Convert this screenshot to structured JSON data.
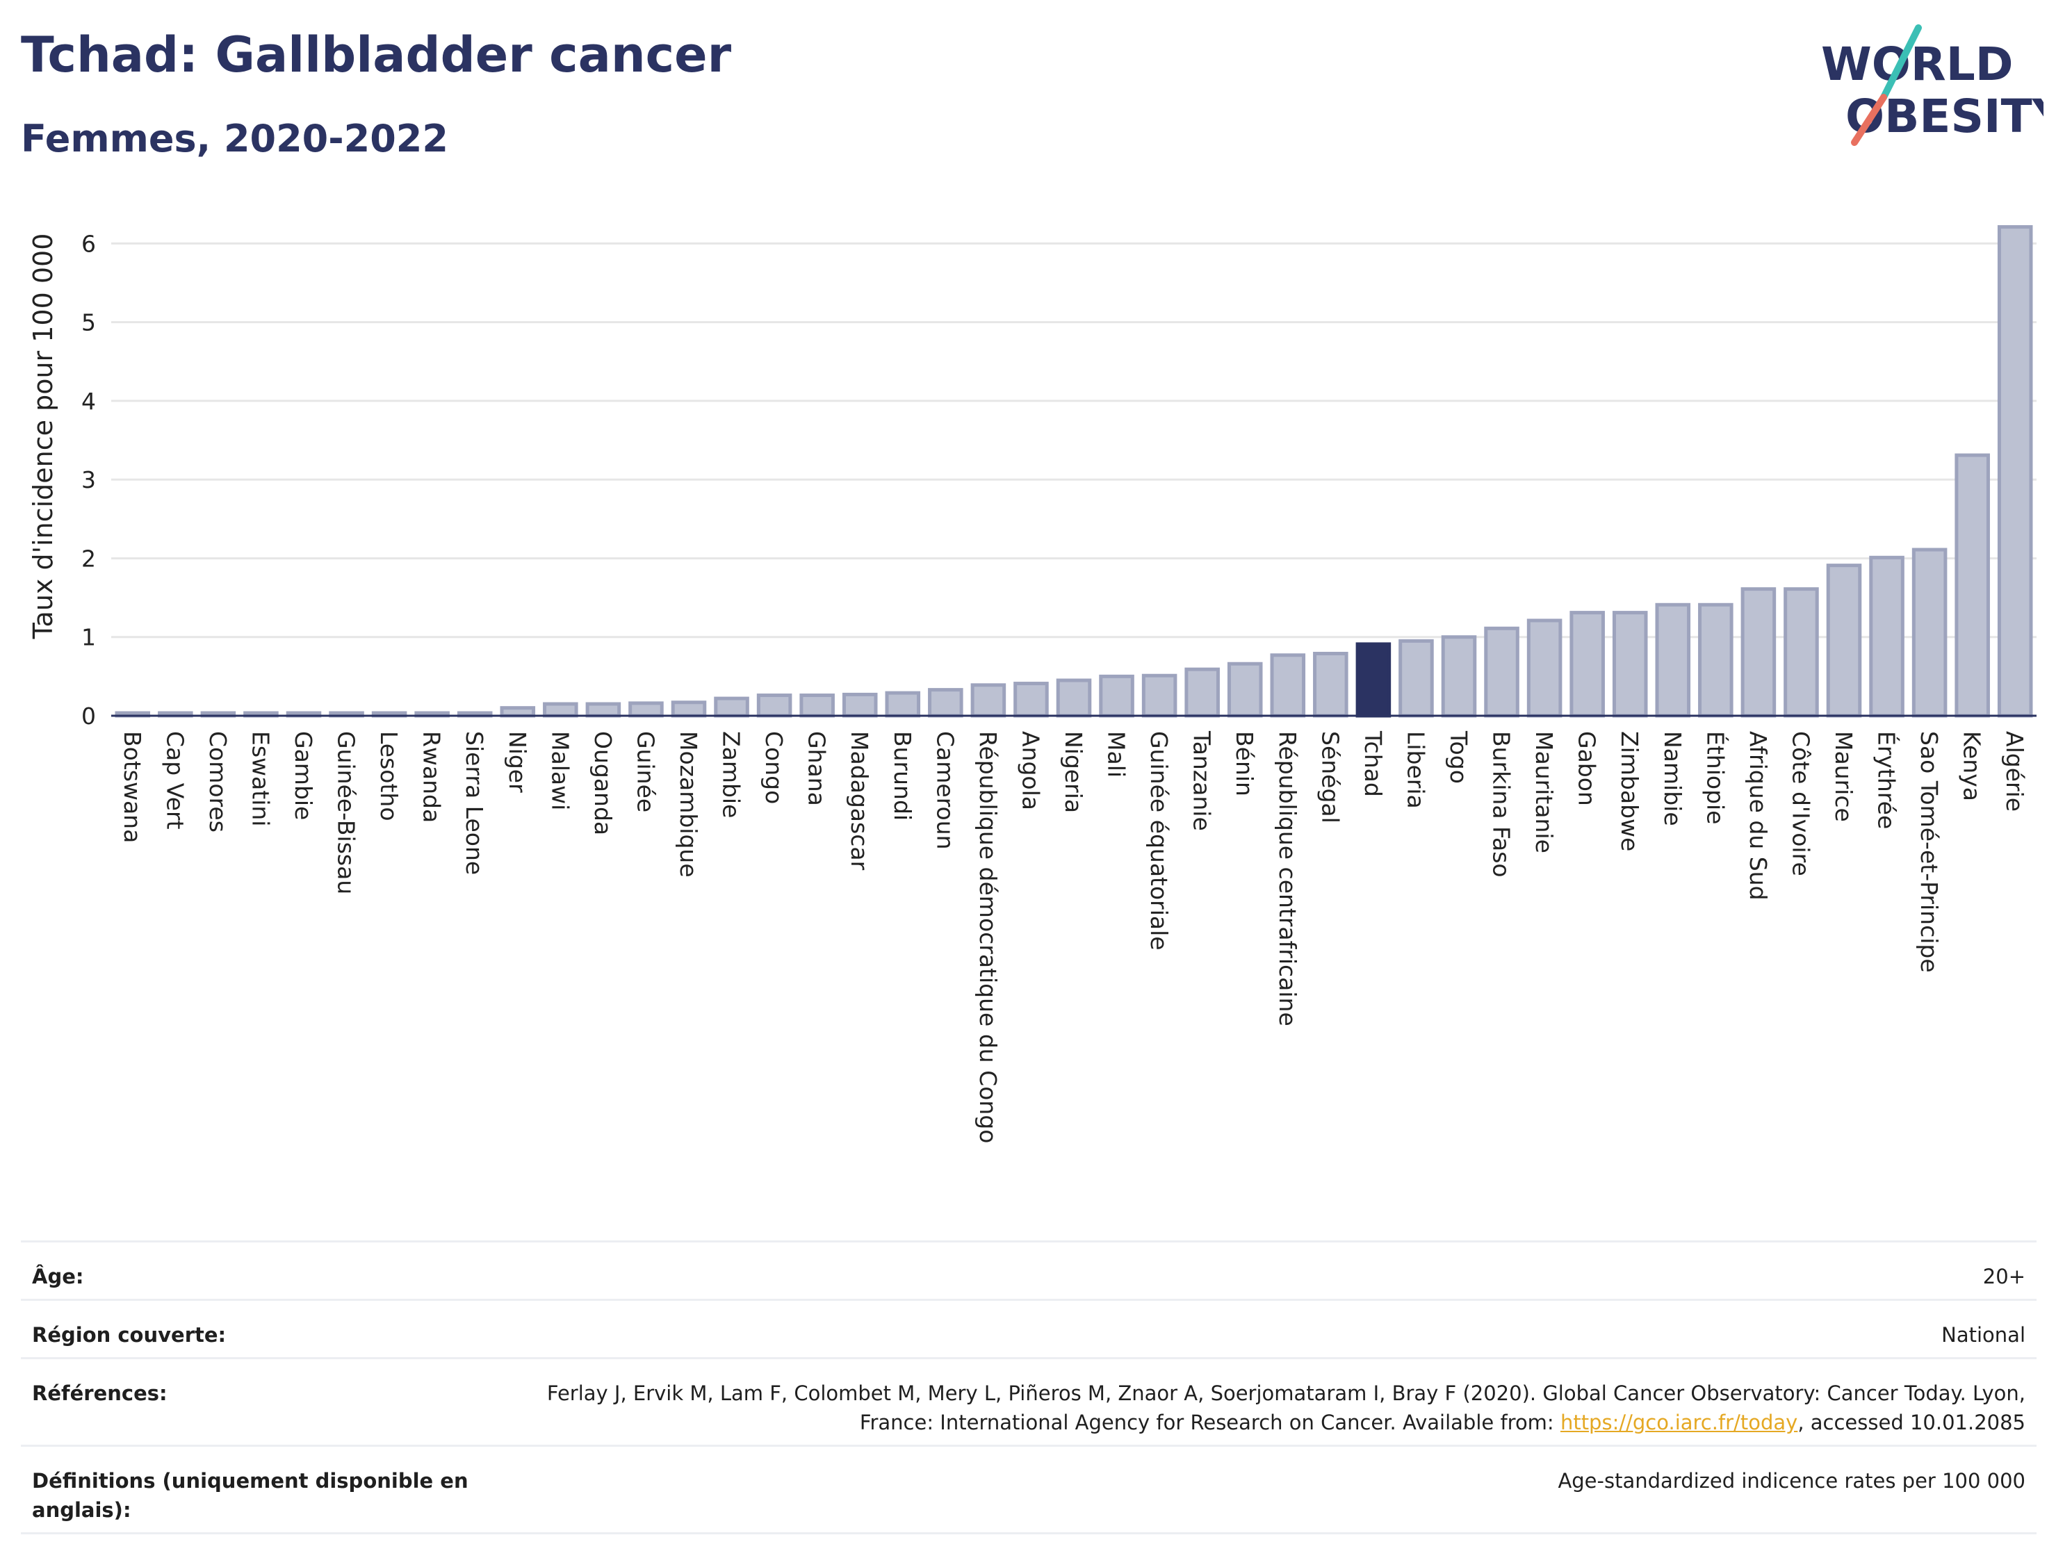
{
  "header": {
    "title": "Tchad: Gallbladder cancer",
    "subtitle": "Femmes, 2020-2022"
  },
  "logo": {
    "line1": "WORLD",
    "line2": "OBESITY",
    "accent_teal": "#3bbfb5",
    "accent_coral": "#e8705f"
  },
  "colors": {
    "bar_fill": "#bcc1d2",
    "bar_stroke": "#9da3bd",
    "highlight": "#2b3362",
    "grid": "#e6e6e6"
  },
  "chart_data": {
    "type": "bar",
    "ylabel": "Taux d'incidence pour 100 000",
    "ylim": [
      0,
      6.4
    ],
    "yticks": [
      0,
      1,
      2,
      3,
      4,
      5,
      6
    ],
    "grid": true,
    "highlight": "Tchad",
    "categories": [
      "Botswana",
      "Cap Vert",
      "Comores",
      "Eswatini",
      "Gambie",
      "Guinée-Bissau",
      "Lesotho",
      "Rwanda",
      "Sierra Leone",
      "Niger",
      "Malawi",
      "Ouganda",
      "Guinée",
      "Mozambique",
      "Zambie",
      "Congo",
      "Ghana",
      "Madagascar",
      "Burundi",
      "Cameroun",
      "République démocratique du Congo",
      "Angola",
      "Nigeria",
      "Mali",
      "Guinée équatoriale",
      "Tanzanie",
      "Bénin",
      "République centrafricaine",
      "Sénégal",
      "Tchad",
      "Liberia",
      "Togo",
      "Burkina Faso",
      "Mauritanie",
      "Gabon",
      "Zimbabwe",
      "Namibie",
      "Éthiopie",
      "Afrique du Sud",
      "Côte d'Ivoire",
      "Maurice",
      "Érythrée",
      "Sao Tomé-et-Principe",
      "Kenya",
      "Algérie"
    ],
    "values": [
      0.02,
      0.02,
      0.02,
      0.02,
      0.02,
      0.02,
      0.02,
      0.02,
      0.02,
      0.1,
      0.15,
      0.15,
      0.16,
      0.17,
      0.22,
      0.26,
      0.26,
      0.27,
      0.29,
      0.33,
      0.39,
      0.41,
      0.45,
      0.5,
      0.51,
      0.59,
      0.66,
      0.77,
      0.79,
      0.91,
      0.95,
      1.0,
      1.11,
      1.21,
      1.31,
      1.31,
      1.41,
      1.41,
      1.61,
      1.61,
      1.91,
      2.01,
      2.11,
      3.31,
      6.21
    ]
  },
  "info": {
    "age_label": "Âge:",
    "age_value": "20+",
    "region_label": "Région couverte:",
    "region_value": "National",
    "references_label": "Références:",
    "references_text": "Ferlay J, Ervik M, Lam F, Colombet M, Mery L, Piñeros M, Znaor A, Soerjomataram I, Bray F (2020). Global Cancer Observatory: Cancer Today. Lyon, France: International Agency for Research on Cancer. Available from: ",
    "references_link": "https://gco.iarc.fr/today",
    "references_suffix": ", accessed 10.01.2085",
    "definitions_label": "Définitions (uniquement disponible en anglais):",
    "definitions_value": "Age-standardized indicence rates per 100 000"
  }
}
